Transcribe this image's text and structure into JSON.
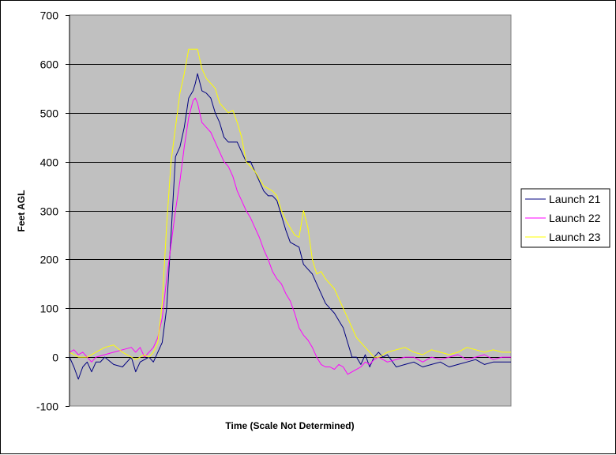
{
  "chart_data": {
    "type": "line",
    "title": "",
    "xlabel": "Time (Scale Not Determined)",
    "ylabel": "Feet AGL",
    "ylim": [
      -100,
      700
    ],
    "yticks": [
      -100,
      0,
      100,
      200,
      300,
      400,
      500,
      600,
      700
    ],
    "xlim": [
      0,
      100
    ],
    "grid": true,
    "legend_position": "right",
    "plot_background": "#c0c0c0",
    "series": [
      {
        "name": "Launch 21",
        "color": "#000080",
        "x": [
          0,
          1,
          2,
          3,
          4,
          5,
          6,
          7,
          8,
          10,
          12,
          14,
          15,
          16,
          18,
          19,
          20,
          21,
          22,
          23,
          24,
          25,
          26,
          27,
          28,
          28.5,
          29,
          30,
          31,
          32,
          33,
          34,
          35,
          36,
          37,
          38,
          39,
          40,
          41,
          42,
          43,
          44,
          45,
          46,
          47,
          48,
          49,
          50,
          51,
          52,
          53,
          54,
          55,
          56,
          57,
          58,
          59,
          60,
          61,
          62,
          63,
          64,
          65,
          66,
          67,
          68,
          69,
          70,
          71,
          72,
          74,
          76,
          78,
          80,
          82,
          84,
          86,
          88,
          90,
          92,
          94,
          96,
          98,
          100
        ],
        "y": [
          0,
          -20,
          -45,
          -20,
          -10,
          -30,
          -10,
          -10,
          0,
          -15,
          -20,
          0,
          -30,
          -10,
          0,
          -10,
          10,
          30,
          100,
          250,
          410,
          430,
          470,
          530,
          545,
          560,
          580,
          545,
          540,
          530,
          500,
          480,
          450,
          440,
          440,
          440,
          420,
          400,
          400,
          380,
          360,
          340,
          330,
          330,
          320,
          290,
          260,
          235,
          230,
          225,
          190,
          180,
          170,
          150,
          130,
          110,
          100,
          90,
          75,
          60,
          30,
          0,
          0,
          -15,
          5,
          -20,
          0,
          10,
          0,
          5,
          -20,
          -15,
          -10,
          -20,
          -15,
          -10,
          -20,
          -15,
          -10,
          -5,
          -15,
          -10,
          -10,
          -10
        ]
      },
      {
        "name": "Launch 22",
        "color": "#ff00ff",
        "x": [
          0,
          1,
          2,
          3,
          4,
          5,
          6,
          8,
          10,
          12,
          14,
          15,
          16,
          17,
          18,
          19,
          20,
          21,
          22,
          23,
          24,
          25,
          26,
          27,
          28,
          28.5,
          29,
          30,
          31,
          32,
          33,
          34,
          35,
          36,
          37,
          38,
          39,
          40,
          41,
          42,
          43,
          44,
          45,
          46,
          47,
          48,
          49,
          50,
          51,
          52,
          53,
          54,
          55,
          56,
          57,
          58,
          59,
          60,
          61,
          62,
          63,
          64,
          65,
          66,
          67,
          68,
          69,
          70,
          72,
          74,
          76,
          78,
          80,
          82,
          84,
          86,
          88,
          90,
          92,
          94,
          96,
          98,
          100
        ],
        "y": [
          10,
          15,
          5,
          10,
          0,
          -10,
          0,
          5,
          10,
          15,
          20,
          10,
          20,
          0,
          10,
          20,
          40,
          80,
          160,
          230,
          300,
          360,
          430,
          490,
          525,
          530,
          520,
          480,
          470,
          460,
          440,
          420,
          400,
          390,
          370,
          340,
          320,
          300,
          285,
          265,
          245,
          220,
          200,
          175,
          160,
          150,
          130,
          115,
          90,
          60,
          45,
          35,
          20,
          0,
          -15,
          -20,
          -20,
          -25,
          -15,
          -20,
          -35,
          -30,
          -25,
          -20,
          -10,
          -15,
          -5,
          0,
          -10,
          -5,
          0,
          0,
          -10,
          0,
          -5,
          0,
          5,
          -5,
          0,
          5,
          -5,
          0,
          0
        ]
      },
      {
        "name": "Launch 23",
        "color": "#ffff00",
        "x": [
          0,
          2,
          4,
          6,
          8,
          10,
          12,
          14,
          15,
          16,
          17,
          18,
          19,
          20,
          21,
          22,
          23,
          24,
          25,
          26,
          27,
          28,
          29,
          30,
          31,
          32,
          33,
          34,
          35,
          36,
          37,
          38,
          39,
          40,
          41,
          42,
          43,
          44,
          45,
          46,
          47,
          48,
          49,
          50,
          51,
          52,
          53,
          54,
          55,
          56,
          57,
          58,
          59,
          60,
          61,
          62,
          63,
          64,
          65,
          66,
          67,
          68,
          69,
          70,
          71,
          72,
          74,
          76,
          78,
          80,
          82,
          84,
          86,
          88,
          90,
          92,
          94,
          96,
          98,
          100
        ],
        "y": [
          10,
          0,
          0,
          10,
          20,
          25,
          10,
          0,
          -5,
          0,
          5,
          0,
          10,
          30,
          110,
          270,
          400,
          470,
          540,
          580,
          630,
          630,
          630,
          590,
          570,
          560,
          550,
          520,
          510,
          500,
          505,
          480,
          450,
          400,
          390,
          380,
          365,
          350,
          345,
          340,
          330,
          300,
          280,
          265,
          250,
          245,
          300,
          265,
          200,
          170,
          175,
          160,
          150,
          140,
          120,
          100,
          80,
          60,
          40,
          30,
          20,
          10,
          0,
          0,
          5,
          10,
          15,
          20,
          10,
          5,
          15,
          10,
          5,
          10,
          20,
          15,
          10,
          15,
          10,
          10
        ]
      }
    ]
  }
}
